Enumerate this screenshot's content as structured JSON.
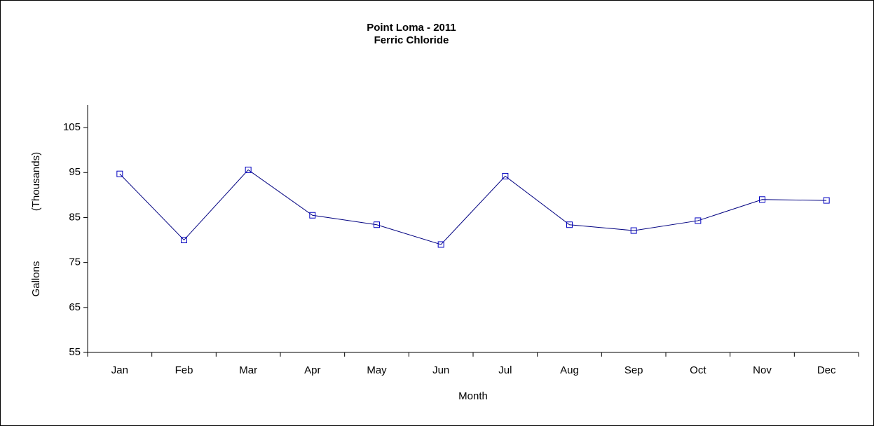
{
  "chart_data": {
    "type": "line",
    "title": "Point Loma - 2011",
    "subtitle": "Ferric Chloride",
    "xlabel": "Month",
    "ylabel": "Gallons",
    "ylabel_unit": "(Thousands)",
    "categories": [
      "Jan",
      "Feb",
      "Mar",
      "Apr",
      "May",
      "Jun",
      "Jul",
      "Aug",
      "Sep",
      "Oct",
      "Nov",
      "Dec"
    ],
    "series": [
      {
        "color": "#000080",
        "values": [
          94.7,
          80.0,
          95.6,
          85.5,
          83.4,
          79.0,
          94.2,
          83.4,
          82.1,
          84.3,
          89.0,
          88.8
        ]
      }
    ],
    "marker_color": "#0000c0",
    "ylim": [
      55,
      110
    ],
    "yticks": [
      55,
      65,
      75,
      85,
      95,
      105
    ],
    "grid": false
  }
}
